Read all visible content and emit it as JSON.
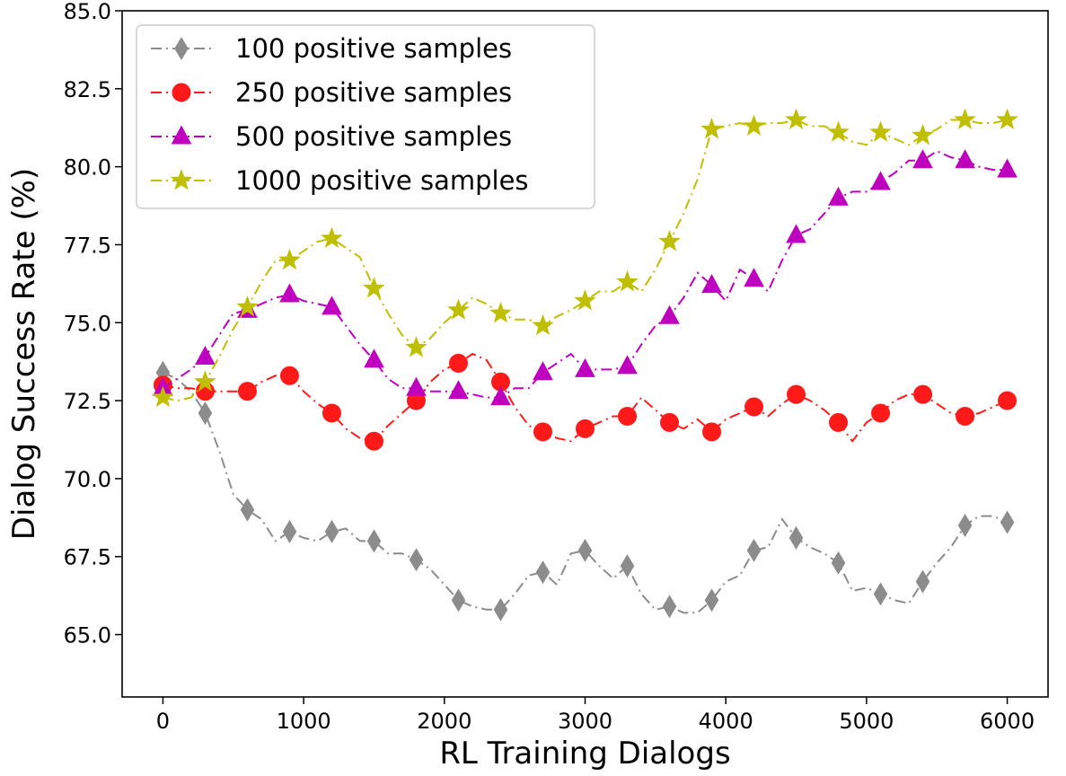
{
  "chart_data": {
    "type": "line",
    "xlabel": "RL Training Dialogs",
    "ylabel": "Dialog Success Rate (%)",
    "xlim": [
      -290,
      6290
    ],
    "ylim": [
      63.0,
      85.0
    ],
    "xticks": [
      0,
      1000,
      2000,
      3000,
      4000,
      5000,
      6000
    ],
    "xtick_labels": [
      "0",
      "1000",
      "2000",
      "3000",
      "4000",
      "5000",
      "6000"
    ],
    "yticks": [
      65.0,
      67.5,
      70.0,
      72.5,
      75.0,
      77.5,
      80.0,
      82.5,
      85.0
    ],
    "ytick_labels": [
      "65.0",
      "67.5",
      "70.0",
      "72.5",
      "75.0",
      "77.5",
      "80.0",
      "82.5",
      "85.0"
    ],
    "grid": false,
    "legend_position": "top-left",
    "marker_x": [
      0,
      300,
      600,
      900,
      1200,
      1500,
      1800,
      2100,
      2400,
      2700,
      3000,
      3300,
      3600,
      3900,
      4200,
      4500,
      4800,
      5100,
      5400,
      5700,
      6000
    ],
    "series": [
      {
        "name": "100 positive samples",
        "color": "#8c8c8c",
        "marker": "diamond",
        "line_x": [
          0,
          100,
          200,
          300,
          400,
          500,
          600,
          700,
          800,
          900,
          1000,
          1100,
          1200,
          1300,
          1400,
          1500,
          1600,
          1700,
          1800,
          1900,
          2000,
          2100,
          2200,
          2300,
          2400,
          2500,
          2600,
          2700,
          2800,
          2900,
          3000,
          3100,
          3200,
          3300,
          3400,
          3500,
          3600,
          3700,
          3800,
          3900,
          4000,
          4100,
          4200,
          4300,
          4400,
          4500,
          4600,
          4700,
          4800,
          4900,
          5000,
          5100,
          5200,
          5300,
          5400,
          5500,
          5600,
          5700,
          5800,
          5900,
          6000
        ],
        "line_y": [
          73.4,
          73.2,
          72.8,
          72.1,
          70.9,
          69.5,
          69.0,
          68.7,
          68.0,
          68.3,
          68.1,
          68.0,
          68.3,
          68.4,
          68.0,
          68.0,
          67.6,
          67.6,
          67.4,
          67.1,
          66.6,
          66.1,
          65.9,
          65.8,
          65.8,
          66.3,
          66.9,
          67.0,
          66.6,
          67.6,
          67.7,
          67.2,
          66.8,
          67.2,
          66.3,
          65.8,
          65.9,
          65.7,
          65.7,
          66.1,
          66.7,
          66.9,
          67.7,
          67.8,
          68.7,
          68.1,
          67.8,
          67.6,
          67.3,
          66.4,
          66.5,
          66.3,
          66.1,
          66.0,
          66.7,
          67.3,
          67.8,
          68.5,
          68.8,
          68.8,
          68.6
        ],
        "values": [
          73.4,
          72.1,
          69.0,
          68.3,
          68.3,
          68.0,
          67.4,
          66.1,
          65.8,
          67.0,
          67.7,
          67.2,
          65.9,
          66.1,
          67.7,
          68.1,
          67.3,
          66.3,
          66.7,
          68.5,
          68.6
        ]
      },
      {
        "name": "250 positive samples",
        "color": "#ff1a1a",
        "marker": "circle",
        "line_x": [
          0,
          100,
          200,
          300,
          400,
          500,
          600,
          700,
          800,
          900,
          1000,
          1100,
          1200,
          1300,
          1400,
          1500,
          1600,
          1700,
          1800,
          1900,
          2000,
          2100,
          2200,
          2300,
          2400,
          2500,
          2600,
          2700,
          2800,
          2900,
          3000,
          3100,
          3200,
          3300,
          3400,
          3500,
          3600,
          3700,
          3800,
          3900,
          4000,
          4100,
          4200,
          4300,
          4400,
          4500,
          4600,
          4700,
          4800,
          4900,
          5000,
          5100,
          5200,
          5300,
          5400,
          5500,
          5600,
          5700,
          5800,
          5900,
          6000
        ],
        "line_y": [
          73.0,
          72.9,
          72.9,
          72.8,
          72.8,
          72.8,
          72.8,
          73.1,
          73.3,
          73.3,
          72.8,
          72.4,
          72.1,
          71.6,
          71.3,
          71.2,
          71.7,
          72.1,
          72.5,
          73.1,
          73.5,
          73.7,
          74.0,
          73.8,
          73.1,
          72.3,
          71.7,
          71.5,
          71.3,
          71.2,
          71.6,
          71.8,
          72.0,
          72.0,
          72.6,
          72.2,
          71.8,
          71.6,
          71.9,
          71.5,
          71.9,
          72.1,
          72.3,
          72.0,
          72.4,
          72.7,
          72.5,
          72.2,
          71.8,
          71.2,
          71.8,
          72.1,
          72.5,
          72.7,
          72.7,
          72.4,
          72.1,
          72.0,
          72.1,
          72.3,
          72.5
        ],
        "values": [
          73.0,
          72.8,
          72.8,
          73.3,
          72.1,
          71.2,
          72.5,
          73.7,
          73.1,
          71.5,
          71.6,
          72.0,
          71.8,
          71.5,
          72.3,
          72.7,
          71.8,
          72.1,
          72.7,
          72.0,
          72.5
        ]
      },
      {
        "name": "500 positive samples",
        "color": "#bf00bf",
        "marker": "triangle",
        "line_x": [
          0,
          100,
          200,
          300,
          400,
          500,
          600,
          700,
          800,
          900,
          1000,
          1100,
          1200,
          1300,
          1400,
          1500,
          1600,
          1700,
          1800,
          1900,
          2000,
          2100,
          2200,
          2300,
          2400,
          2500,
          2600,
          2700,
          2800,
          2900,
          3000,
          3100,
          3200,
          3300,
          3400,
          3500,
          3600,
          3700,
          3800,
          3900,
          4000,
          4100,
          4200,
          4300,
          4400,
          4500,
          4600,
          4700,
          4800,
          4900,
          5000,
          5100,
          5200,
          5300,
          5400,
          5500,
          5600,
          5700,
          5800,
          5900,
          6000
        ],
        "line_y": [
          72.9,
          73.2,
          73.5,
          73.9,
          74.6,
          75.3,
          75.4,
          75.6,
          75.8,
          75.9,
          75.7,
          75.6,
          75.5,
          74.9,
          74.3,
          73.8,
          73.2,
          72.9,
          72.9,
          72.8,
          72.8,
          72.8,
          72.7,
          72.6,
          72.6,
          72.9,
          72.9,
          73.4,
          73.7,
          74.0,
          73.5,
          73.5,
          73.5,
          73.6,
          74.3,
          74.9,
          75.2,
          75.8,
          76.6,
          76.2,
          75.7,
          76.7,
          76.4,
          76.0,
          77.0,
          77.8,
          78.0,
          78.5,
          79.0,
          79.2,
          79.2,
          79.5,
          79.8,
          80.2,
          80.2,
          80.5,
          80.3,
          80.2,
          80.0,
          79.9,
          79.9
        ],
        "values": [
          72.9,
          73.9,
          75.4,
          75.9,
          75.5,
          73.8,
          72.9,
          72.8,
          72.6,
          73.4,
          73.5,
          73.6,
          75.2,
          76.2,
          76.4,
          77.8,
          79.0,
          79.5,
          80.2,
          80.2,
          79.9
        ]
      },
      {
        "name": "1000 positive samples",
        "color": "#bfbf00",
        "marker": "star",
        "line_x": [
          0,
          100,
          200,
          300,
          400,
          500,
          600,
          700,
          800,
          900,
          1000,
          1100,
          1200,
          1300,
          1400,
          1500,
          1600,
          1700,
          1800,
          1900,
          2000,
          2100,
          2200,
          2300,
          2400,
          2500,
          2600,
          2700,
          2800,
          2900,
          3000,
          3100,
          3200,
          3300,
          3400,
          3500,
          3600,
          3700,
          3800,
          3900,
          4000,
          4100,
          4200,
          4300,
          4400,
          4500,
          4600,
          4700,
          4800,
          4900,
          5000,
          5100,
          5200,
          5300,
          5400,
          5500,
          5600,
          5700,
          5800,
          5900,
          6000
        ],
        "line_y": [
          72.6,
          72.5,
          72.6,
          73.1,
          73.9,
          74.8,
          75.5,
          76.3,
          77.0,
          77.0,
          77.3,
          77.6,
          77.7,
          77.4,
          77.1,
          76.1,
          75.3,
          74.6,
          74.2,
          74.5,
          75.0,
          75.4,
          75.8,
          75.6,
          75.3,
          75.1,
          75.1,
          74.9,
          75.2,
          75.4,
          75.7,
          76.0,
          76.0,
          76.3,
          76.0,
          76.7,
          77.6,
          78.5,
          79.6,
          81.2,
          81.3,
          81.4,
          81.3,
          81.4,
          81.4,
          81.5,
          81.3,
          81.3,
          81.1,
          80.8,
          80.7,
          81.1,
          80.9,
          80.7,
          81.0,
          81.2,
          81.5,
          81.5,
          81.4,
          81.4,
          81.5
        ],
        "values": [
          72.6,
          73.1,
          75.5,
          77.0,
          77.7,
          76.1,
          74.2,
          75.4,
          75.3,
          74.9,
          75.7,
          76.3,
          77.6,
          81.2,
          81.3,
          81.5,
          81.1,
          81.1,
          81.0,
          81.5,
          81.5
        ]
      }
    ]
  }
}
